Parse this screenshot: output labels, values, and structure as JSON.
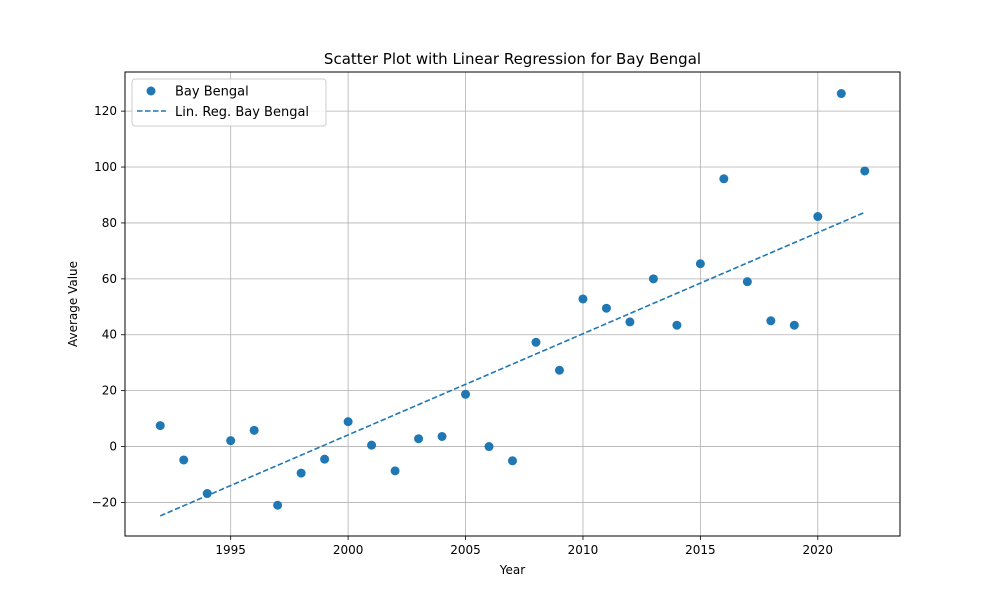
{
  "chart_data": {
    "type": "scatter",
    "title": "Scatter Plot with Linear Regression for Bay Bengal",
    "xlabel": "Year",
    "ylabel": "Average Value",
    "xlim": [
      1990.5,
      2023.5
    ],
    "ylim": [
      -32,
      134
    ],
    "xticks": [
      1995,
      2000,
      2005,
      2010,
      2015,
      2020
    ],
    "yticks": [
      -20,
      0,
      20,
      40,
      60,
      80,
      100,
      120
    ],
    "grid": true,
    "legend_position": "top-left",
    "series": [
      {
        "name": "Bay Bengal",
        "kind": "scatter",
        "color": "#1f77b4",
        "x": [
          1992,
          1993,
          1994,
          1995,
          1996,
          1997,
          1998,
          1999,
          2000,
          2001,
          2002,
          2003,
          2004,
          2005,
          2006,
          2007,
          2008,
          2009,
          2010,
          2011,
          2012,
          2013,
          2014,
          2015,
          2016,
          2017,
          2018,
          2019,
          2020,
          2021,
          2022
        ],
        "y": [
          7.5,
          -4.8,
          -16.8,
          2.1,
          5.8,
          -21.0,
          -9.5,
          -4.5,
          8.9,
          0.5,
          -8.7,
          2.8,
          3.6,
          18.7,
          0.0,
          -5.1,
          37.3,
          27.3,
          52.8,
          49.5,
          44.6,
          60.0,
          43.4,
          65.4,
          95.8,
          59.0,
          45.0,
          43.4,
          82.3,
          126.3,
          98.6
        ]
      },
      {
        "name": "Lin. Reg. Bay Bengal",
        "kind": "line",
        "style": "dashed",
        "color": "#1f77b4",
        "x": [
          1992,
          2022
        ],
        "y": [
          -24.8,
          83.8
        ]
      }
    ]
  }
}
